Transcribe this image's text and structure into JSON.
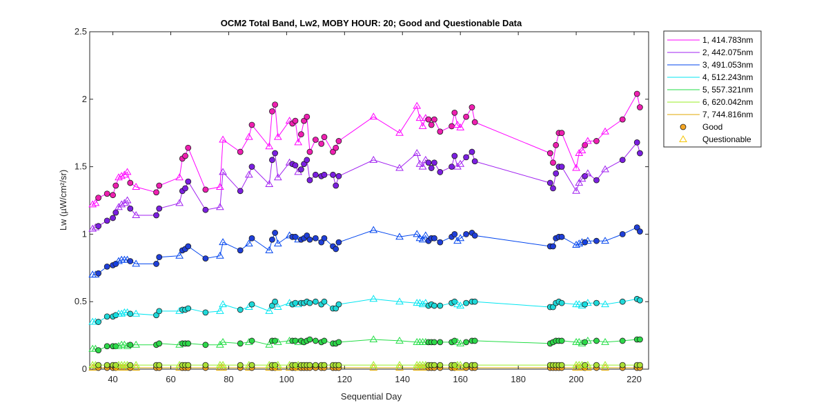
{
  "chart_data": {
    "type": "line",
    "title": "OCM2 Total Band,  Lw2, MOBY HOUR: 20;  Good and Questionable Data",
    "xlabel": "Sequential Day",
    "ylabel": "Lw (µW/cm²/sr)",
    "xlim": [
      32,
      225
    ],
    "ylim": [
      0,
      2.5
    ],
    "xticks": [
      40,
      60,
      80,
      100,
      120,
      140,
      160,
      180,
      200,
      220
    ],
    "xtick_labels": [
      "40",
      "60",
      "80",
      "100",
      "120",
      "140",
      "160",
      "180",
      "200",
      "220"
    ],
    "yticks": [
      0,
      0.5,
      1,
      1.5,
      2,
      2.5
    ],
    "ytick_labels": [
      "0",
      "0.5",
      "1",
      "1.5",
      "2",
      "2.5"
    ],
    "grid": false,
    "legend_position": "outside-top-right",
    "x": [
      33,
      34,
      35,
      38,
      40,
      41,
      42,
      43,
      44,
      45,
      46,
      48,
      55,
      56,
      63,
      64,
      65,
      66,
      72,
      77,
      78,
      84,
      87,
      88,
      94,
      95,
      96,
      97,
      101,
      102,
      103,
      104,
      105,
      106,
      107,
      108,
      110,
      112,
      113,
      116,
      117,
      118,
      130,
      139,
      145,
      146,
      147,
      148,
      149,
      150,
      151,
      153,
      157,
      158,
      159,
      160,
      162,
      164,
      165,
      191,
      192,
      193,
      194,
      195,
      200,
      201,
      202,
      203,
      204,
      207,
      210,
      216,
      221,
      222
    ],
    "quality": [
      "Q",
      "Q",
      "G",
      "G",
      "G",
      "G",
      "Q",
      "Q",
      "Q",
      "Q",
      "G",
      "Q",
      "G",
      "G",
      "Q",
      "G",
      "G",
      "G",
      "G",
      "Q",
      "Q",
      "G",
      "Q",
      "G",
      "Q",
      "G",
      "G",
      "Q",
      "Q",
      "G",
      "G",
      "Q",
      "G",
      "G",
      "G",
      "G",
      "G",
      "G",
      "G",
      "G",
      "G",
      "G",
      "Q",
      "Q",
      "Q",
      "Q",
      "Q",
      "Q",
      "G",
      "G",
      "G",
      "G",
      "G",
      "G",
      "Q",
      "Q",
      "G",
      "G",
      "G",
      "G",
      "G",
      "G",
      "G",
      "G",
      "Q",
      "Q",
      "Q",
      "G",
      "Q",
      "G",
      "Q",
      "G",
      "G",
      "G"
    ],
    "series": [
      {
        "name": "1, 414.783nm",
        "color": "#ff00ff",
        "marker_color": "#ee1fb0",
        "values": [
          1.22,
          1.23,
          1.27,
          1.3,
          1.29,
          1.36,
          1.42,
          1.43,
          1.44,
          1.46,
          1.38,
          1.35,
          1.31,
          1.36,
          1.42,
          1.56,
          1.58,
          1.64,
          1.33,
          1.35,
          1.7,
          1.61,
          1.72,
          1.81,
          1.65,
          1.91,
          1.96,
          1.72,
          1.84,
          1.82,
          1.84,
          1.68,
          1.74,
          1.84,
          1.87,
          1.61,
          1.7,
          1.67,
          1.72,
          1.61,
          1.64,
          1.69,
          1.87,
          1.75,
          1.95,
          1.86,
          1.8,
          1.86,
          1.85,
          1.81,
          1.85,
          1.76,
          1.8,
          1.9,
          1.81,
          1.79,
          1.87,
          1.94,
          1.83,
          1.6,
          1.53,
          1.66,
          1.75,
          1.75,
          1.49,
          1.6,
          1.62,
          1.66,
          1.69,
          1.69,
          1.76,
          1.85,
          2.04,
          1.94
        ]
      },
      {
        "name": "2, 442.075nm",
        "color": "#a020f0",
        "marker_color": "#7b1fe0",
        "values": [
          1.04,
          1.05,
          1.06,
          1.1,
          1.12,
          1.16,
          1.2,
          1.22,
          1.23,
          1.25,
          1.19,
          1.14,
          1.14,
          1.19,
          1.23,
          1.32,
          1.34,
          1.39,
          1.18,
          1.2,
          1.46,
          1.32,
          1.44,
          1.5,
          1.37,
          1.55,
          1.6,
          1.42,
          1.53,
          1.52,
          1.51,
          1.46,
          1.48,
          1.52,
          1.55,
          1.4,
          1.44,
          1.43,
          1.44,
          1.44,
          1.36,
          1.43,
          1.55,
          1.49,
          1.6,
          1.52,
          1.5,
          1.55,
          1.53,
          1.49,
          1.53,
          1.46,
          1.5,
          1.58,
          1.5,
          1.52,
          1.57,
          1.61,
          1.54,
          1.38,
          1.34,
          1.45,
          1.5,
          1.5,
          1.32,
          1.38,
          1.41,
          1.43,
          1.45,
          1.4,
          1.48,
          1.55,
          1.68,
          1.6
        ]
      },
      {
        "name": "3, 491.053nm",
        "color": "#0044ee",
        "marker_color": "#1f3fd8",
        "values": [
          0.7,
          0.7,
          0.71,
          0.76,
          0.77,
          0.78,
          0.8,
          0.81,
          0.81,
          0.81,
          0.8,
          0.78,
          0.78,
          0.83,
          0.84,
          0.88,
          0.89,
          0.91,
          0.82,
          0.84,
          0.94,
          0.88,
          0.93,
          0.97,
          0.88,
          0.96,
          1.01,
          0.93,
          0.99,
          0.98,
          0.98,
          0.96,
          0.96,
          0.97,
          0.99,
          0.96,
          0.97,
          0.94,
          0.97,
          0.91,
          0.89,
          0.94,
          1.03,
          0.98,
          1.0,
          0.97,
          0.96,
          0.99,
          0.95,
          0.97,
          0.97,
          0.94,
          0.98,
          1.0,
          0.95,
          0.97,
          1.0,
          1.01,
          0.99,
          0.91,
          0.91,
          0.97,
          0.98,
          0.98,
          0.92,
          0.93,
          0.94,
          0.94,
          0.95,
          0.95,
          0.95,
          1.0,
          1.05,
          1.02
        ]
      },
      {
        "name": "4, 512.243nm",
        "color": "#00e5f0",
        "marker_color": "#1fd8d8",
        "values": [
          0.35,
          0.35,
          0.35,
          0.39,
          0.39,
          0.4,
          0.41,
          0.41,
          0.42,
          0.42,
          0.41,
          0.41,
          0.4,
          0.43,
          0.43,
          0.44,
          0.44,
          0.45,
          0.42,
          0.43,
          0.48,
          0.44,
          0.46,
          0.48,
          0.43,
          0.47,
          0.5,
          0.46,
          0.49,
          0.48,
          0.49,
          0.48,
          0.49,
          0.49,
          0.5,
          0.49,
          0.5,
          0.48,
          0.5,
          0.45,
          0.45,
          0.48,
          0.52,
          0.5,
          0.49,
          0.49,
          0.48,
          0.49,
          0.47,
          0.48,
          0.47,
          0.47,
          0.49,
          0.5,
          0.48,
          0.47,
          0.49,
          0.5,
          0.5,
          0.46,
          0.46,
          0.49,
          0.5,
          0.49,
          0.48,
          0.48,
          0.47,
          0.48,
          0.49,
          0.49,
          0.48,
          0.5,
          0.52,
          0.51
        ]
      },
      {
        "name": "5, 557.321nm",
        "color": "#22dd44",
        "marker_color": "#2ed84a",
        "values": [
          0.15,
          0.15,
          0.14,
          0.17,
          0.17,
          0.17,
          0.17,
          0.18,
          0.18,
          0.17,
          0.18,
          0.18,
          0.18,
          0.19,
          0.18,
          0.19,
          0.19,
          0.19,
          0.18,
          0.18,
          0.2,
          0.19,
          0.2,
          0.21,
          0.18,
          0.21,
          0.21,
          0.2,
          0.21,
          0.21,
          0.21,
          0.2,
          0.21,
          0.2,
          0.21,
          0.22,
          0.21,
          0.2,
          0.21,
          0.19,
          0.19,
          0.2,
          0.22,
          0.21,
          0.2,
          0.2,
          0.2,
          0.2,
          0.2,
          0.2,
          0.2,
          0.2,
          0.2,
          0.21,
          0.2,
          0.19,
          0.2,
          0.21,
          0.21,
          0.19,
          0.2,
          0.21,
          0.21,
          0.21,
          0.2,
          0.2,
          0.19,
          0.2,
          0.21,
          0.21,
          0.2,
          0.21,
          0.22,
          0.22
        ]
      },
      {
        "name": "6, 620.042nm",
        "color": "#99ee22",
        "marker_color": "#aae035",
        "values": [
          0.03,
          0.03,
          0.03,
          0.03,
          0.03,
          0.03,
          0.03,
          0.03,
          0.03,
          0.03,
          0.03,
          0.03,
          0.03,
          0.03,
          0.03,
          0.03,
          0.03,
          0.03,
          0.03,
          0.03,
          0.03,
          0.03,
          0.03,
          0.03,
          0.03,
          0.03,
          0.03,
          0.03,
          0.03,
          0.03,
          0.03,
          0.03,
          0.03,
          0.03,
          0.03,
          0.03,
          0.03,
          0.03,
          0.03,
          0.03,
          0.03,
          0.03,
          0.03,
          0.03,
          0.03,
          0.03,
          0.03,
          0.03,
          0.03,
          0.03,
          0.03,
          0.03,
          0.03,
          0.03,
          0.03,
          0.03,
          0.03,
          0.03,
          0.03,
          0.03,
          0.03,
          0.03,
          0.03,
          0.03,
          0.03,
          0.03,
          0.03,
          0.03,
          0.03,
          0.03,
          0.03,
          0.03,
          0.03,
          0.03
        ]
      },
      {
        "name": "7, 744.816nm",
        "color": "#e0a800",
        "marker_color": "#f5a623",
        "values": [
          0.01,
          0.01,
          0.01,
          0.01,
          0.01,
          0.01,
          0.01,
          0.01,
          0.01,
          0.01,
          0.01,
          0.01,
          0.01,
          0.01,
          0.01,
          0.01,
          0.01,
          0.01,
          0.01,
          0.01,
          0.01,
          0.01,
          0.01,
          0.01,
          0.01,
          0.01,
          0.01,
          0.01,
          0.01,
          0.01,
          0.01,
          0.01,
          0.01,
          0.01,
          0.01,
          0.01,
          0.01,
          0.01,
          0.01,
          0.01,
          0.01,
          0.01,
          0.01,
          0.01,
          0.01,
          0.01,
          0.01,
          0.01,
          0.01,
          0.01,
          0.01,
          0.01,
          0.01,
          0.01,
          0.01,
          0.01,
          0.01,
          0.01,
          0.01,
          0.01,
          0.01,
          0.01,
          0.01,
          0.01,
          0.01,
          0.01,
          0.01,
          0.01,
          0.01,
          0.01,
          0.01,
          0.01,
          0.01,
          0.01
        ]
      }
    ],
    "legend": {
      "entries": [
        "1, 414.783nm",
        "2, 442.075nm",
        "3, 491.053nm",
        "4, 512.243nm",
        "5, 557.321nm",
        "6, 620.042nm",
        "7, 744.816nm",
        "Good",
        "Questionable"
      ],
      "good_label": "Good",
      "questionable_label": "Questionable",
      "good_color": "#f5a623",
      "questionable_color": "#f5c400"
    }
  }
}
